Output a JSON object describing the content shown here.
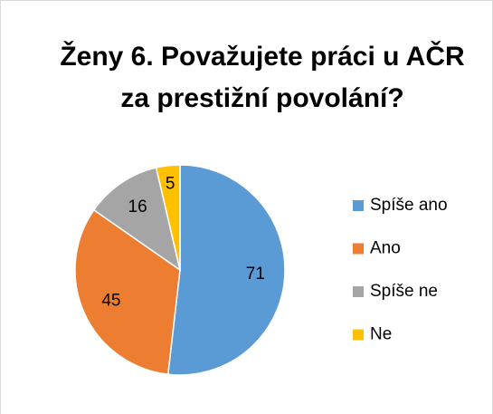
{
  "chart_data": {
    "type": "pie",
    "title": "Ženy 6. Považujete práci u AČR za prestižní povolání?",
    "categories": [
      "Spíše ano",
      "Ano",
      "Spíše ne",
      "Ne"
    ],
    "values": [
      71,
      45,
      16,
      5
    ],
    "colors": [
      "#5b9bd5",
      "#ed7d31",
      "#a5a5a5",
      "#ffc000"
    ],
    "legend": "right"
  }
}
